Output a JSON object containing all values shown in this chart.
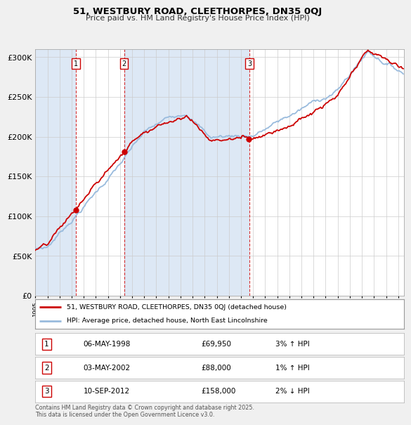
{
  "title_line1": "51, WESTBURY ROAD, CLEETHORPES, DN35 0QJ",
  "title_line2": "Price paid vs. HM Land Registry's House Price Index (HPI)",
  "background_color": "#f0f0f0",
  "plot_bg_color": "#dde8f5",
  "plot_bg_white": "#ffffff",
  "ylim": [
    0,
    310000
  ],
  "yticks": [
    0,
    50000,
    100000,
    150000,
    200000,
    250000,
    300000
  ],
  "ytick_labels": [
    "£0",
    "£50K",
    "£100K",
    "£150K",
    "£200K",
    "£250K",
    "£300K"
  ],
  "xmin": 1995,
  "xmax": 2025.5,
  "sale_markers": [
    {
      "year": 1998.35,
      "price": 69950,
      "label": "1"
    },
    {
      "year": 2002.33,
      "price": 88000,
      "label": "2"
    },
    {
      "year": 2012.7,
      "price": 158000,
      "label": "3"
    }
  ],
  "legend_entries": [
    {
      "label": "51, WESTBURY ROAD, CLEETHORPES, DN35 0QJ (detached house)",
      "color": "#cc0000"
    },
    {
      "label": "HPI: Average price, detached house, North East Lincolnshire",
      "color": "#99bbdd"
    }
  ],
  "table_rows": [
    {
      "num": "1",
      "date": "06-MAY-1998",
      "price": "£69,950",
      "hpi": "3% ↑ HPI"
    },
    {
      "num": "2",
      "date": "03-MAY-2002",
      "price": "£88,000",
      "hpi": "1% ↑ HPI"
    },
    {
      "num": "3",
      "date": "10-SEP-2012",
      "price": "£158,000",
      "hpi": "2% ↓ HPI"
    }
  ],
  "footer": "Contains HM Land Registry data © Crown copyright and database right 2025.\nThis data is licensed under the Open Government Licence v3.0."
}
